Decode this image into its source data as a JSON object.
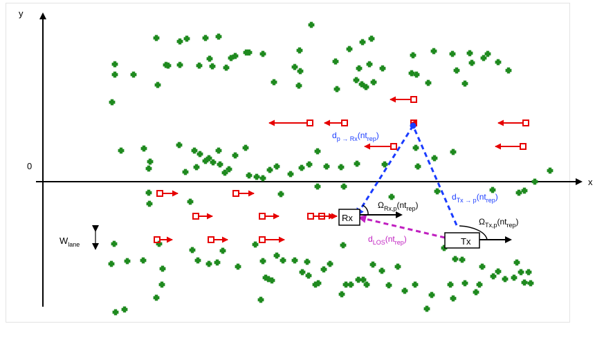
{
  "axes": {
    "x_label": "x",
    "y_label": "y",
    "origin_label": "0"
  },
  "lane_width_label": {
    "main": "W",
    "sub": "lane"
  },
  "nodes": {
    "rx": "Rx",
    "tx": "Tx"
  },
  "labels": {
    "d_p_rx": {
      "main": "d",
      "sub": "p → Rx",
      "arg_open": "(nt",
      "arg_sub": "rep",
      "arg_close": ")"
    },
    "d_tx_p": {
      "main": "d",
      "sub": "Tx → p",
      "arg_open": "(nt",
      "arg_sub": "rep",
      "arg_close": ")"
    },
    "d_los": {
      "main": "d",
      "sub": "LOS",
      "arg_open": "(nt",
      "arg_sub": "rep",
      "arg_close": ")"
    },
    "omega_rx": {
      "main": "Ω",
      "sub": "Rx,p",
      "arg_open": "(nt",
      "arg_sub": "rep",
      "arg_close": ")"
    },
    "omega_tx": {
      "main": "Ω",
      "sub": "Tx,p",
      "arg_open": "(nt",
      "arg_sub": "rep",
      "arg_close": ")"
    }
  },
  "colors": {
    "scatterer": "#1f8a1f",
    "vehicle": "#e60000",
    "blue_path": "#1a3cff",
    "los_path": "#c020c0",
    "lane_line": "#ffffff",
    "dashed_lane": "#ffffff"
  },
  "legend_note": "",
  "vehicles": {
    "left_moving_count": 7,
    "right_moving_count": 9
  }
}
